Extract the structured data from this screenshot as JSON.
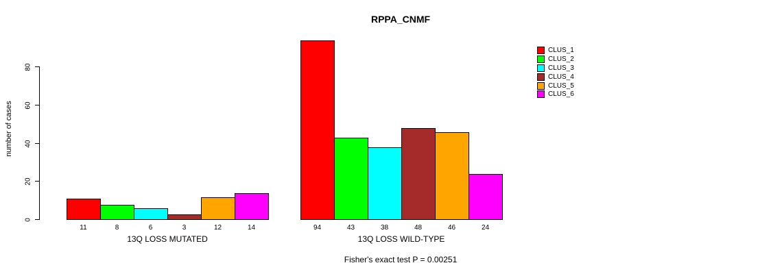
{
  "chart_data": {
    "type": "bar",
    "title": "RPPA_CNMF",
    "ylabel": "number of cases",
    "xlabel": "",
    "ylim": [
      0,
      95
    ],
    "yticks": [
      0,
      20,
      40,
      60,
      80
    ],
    "grid": false,
    "legend_position": "right",
    "bar_border_color": "#000000",
    "categories": [
      "13Q LOSS MUTATED",
      "13Q LOSS WILD-TYPE"
    ],
    "series": [
      {
        "name": "CLUS_1",
        "color": "#FF0000",
        "values": [
          11,
          94
        ]
      },
      {
        "name": "CLUS_2",
        "color": "#00FF00",
        "values": [
          8,
          43
        ]
      },
      {
        "name": "CLUS_3",
        "color": "#00FFFF",
        "values": [
          6,
          38
        ]
      },
      {
        "name": "CLUS_4",
        "color": "#A52A2A",
        "values": [
          3,
          48
        ]
      },
      {
        "name": "CLUS_5",
        "color": "#FFA500",
        "values": [
          12,
          46
        ]
      },
      {
        "name": "CLUS_6",
        "color": "#FF00FF",
        "values": [
          14,
          24
        ]
      }
    ],
    "bar_value_labels": [
      [
        11,
        8,
        6,
        3,
        12,
        14
      ],
      [
        94,
        43,
        38,
        48,
        46,
        24
      ]
    ],
    "annotation": "Fisher's exact test P = 0.00251"
  }
}
